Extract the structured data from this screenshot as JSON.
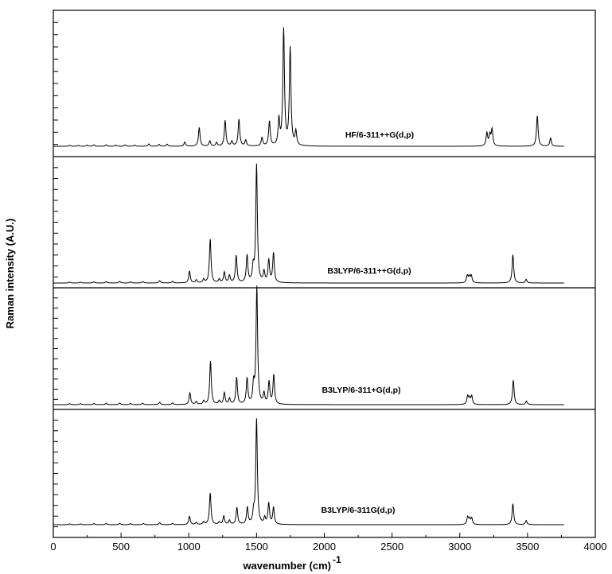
{
  "chart_data": {
    "type": "line",
    "xlabel": "wavenumber (cm)",
    "xlabel_superscript": "-1",
    "ylabel": "Raman intensity (A.U.)",
    "xlim": [
      0,
      4000
    ],
    "x_ticks": [
      0,
      500,
      1000,
      1500,
      2000,
      2500,
      3000,
      3500,
      4000
    ],
    "y_tick_labels": "none",
    "grid": false,
    "layout": "stacked-panels",
    "line_color": "#000000",
    "x_end": 3770,
    "series": [
      {
        "name": "HF/6-311++G(d,p)",
        "ymax": 1.0,
        "peaks": [
          {
            "x": 120,
            "y": 0.008
          },
          {
            "x": 185,
            "y": 0.008
          },
          {
            "x": 250,
            "y": 0.01
          },
          {
            "x": 300,
            "y": 0.012
          },
          {
            "x": 390,
            "y": 0.012
          },
          {
            "x": 460,
            "y": 0.01
          },
          {
            "x": 530,
            "y": 0.012
          },
          {
            "x": 600,
            "y": 0.01
          },
          {
            "x": 705,
            "y": 0.02
          },
          {
            "x": 780,
            "y": 0.016
          },
          {
            "x": 840,
            "y": 0.018
          },
          {
            "x": 970,
            "y": 0.035
          },
          {
            "x": 1077,
            "y": 0.16
          },
          {
            "x": 1155,
            "y": 0.045
          },
          {
            "x": 1205,
            "y": 0.03
          },
          {
            "x": 1268,
            "y": 0.22
          },
          {
            "x": 1318,
            "y": 0.04
          },
          {
            "x": 1370,
            "y": 0.23
          },
          {
            "x": 1420,
            "y": 0.05
          },
          {
            "x": 1540,
            "y": 0.07
          },
          {
            "x": 1595,
            "y": 0.21
          },
          {
            "x": 1665,
            "y": 0.22
          },
          {
            "x": 1700,
            "y": 0.99
          },
          {
            "x": 1748,
            "y": 0.83
          },
          {
            "x": 1790,
            "y": 0.12
          },
          {
            "x": 3200,
            "y": 0.11
          },
          {
            "x": 3222,
            "y": 0.09
          },
          {
            "x": 3238,
            "y": 0.14
          },
          {
            "x": 3572,
            "y": 0.26
          },
          {
            "x": 3670,
            "y": 0.07
          }
        ]
      },
      {
        "name": "B3LYP/6-311++G(d,p)",
        "ymax": 1.0,
        "peaks": [
          {
            "x": 120,
            "y": 0.008
          },
          {
            "x": 200,
            "y": 0.008
          },
          {
            "x": 300,
            "y": 0.01
          },
          {
            "x": 390,
            "y": 0.012
          },
          {
            "x": 490,
            "y": 0.014
          },
          {
            "x": 570,
            "y": 0.01
          },
          {
            "x": 660,
            "y": 0.012
          },
          {
            "x": 785,
            "y": 0.02
          },
          {
            "x": 880,
            "y": 0.014
          },
          {
            "x": 1005,
            "y": 0.1
          },
          {
            "x": 1055,
            "y": 0.025
          },
          {
            "x": 1110,
            "y": 0.03
          },
          {
            "x": 1158,
            "y": 0.37
          },
          {
            "x": 1225,
            "y": 0.03
          },
          {
            "x": 1262,
            "y": 0.09
          },
          {
            "x": 1300,
            "y": 0.06
          },
          {
            "x": 1350,
            "y": 0.23
          },
          {
            "x": 1430,
            "y": 0.23
          },
          {
            "x": 1475,
            "y": 0.12
          },
          {
            "x": 1500,
            "y": 1.0
          },
          {
            "x": 1555,
            "y": 0.09
          },
          {
            "x": 1590,
            "y": 0.19
          },
          {
            "x": 1625,
            "y": 0.25
          },
          {
            "x": 3055,
            "y": 0.06
          },
          {
            "x": 3070,
            "y": 0.05
          },
          {
            "x": 3085,
            "y": 0.06
          },
          {
            "x": 3392,
            "y": 0.24
          },
          {
            "x": 3490,
            "y": 0.03
          }
        ]
      },
      {
        "name": "B3LYP/6-311+G(d,p)",
        "ymax": 1.0,
        "peaks": [
          {
            "x": 120,
            "y": 0.008
          },
          {
            "x": 200,
            "y": 0.008
          },
          {
            "x": 300,
            "y": 0.01
          },
          {
            "x": 390,
            "y": 0.012
          },
          {
            "x": 490,
            "y": 0.014
          },
          {
            "x": 570,
            "y": 0.01
          },
          {
            "x": 660,
            "y": 0.012
          },
          {
            "x": 785,
            "y": 0.02
          },
          {
            "x": 880,
            "y": 0.014
          },
          {
            "x": 1008,
            "y": 0.1
          },
          {
            "x": 1055,
            "y": 0.025
          },
          {
            "x": 1110,
            "y": 0.03
          },
          {
            "x": 1160,
            "y": 0.37
          },
          {
            "x": 1225,
            "y": 0.03
          },
          {
            "x": 1262,
            "y": 0.1
          },
          {
            "x": 1300,
            "y": 0.05
          },
          {
            "x": 1353,
            "y": 0.23
          },
          {
            "x": 1430,
            "y": 0.22
          },
          {
            "x": 1478,
            "y": 0.16
          },
          {
            "x": 1502,
            "y": 1.0
          },
          {
            "x": 1555,
            "y": 0.09
          },
          {
            "x": 1592,
            "y": 0.19
          },
          {
            "x": 1627,
            "y": 0.25
          },
          {
            "x": 3058,
            "y": 0.07
          },
          {
            "x": 3072,
            "y": 0.05
          },
          {
            "x": 3088,
            "y": 0.07
          },
          {
            "x": 3395,
            "y": 0.21
          },
          {
            "x": 3492,
            "y": 0.03
          }
        ]
      },
      {
        "name": "B3LYP/6-311G(d,p)",
        "ymax": 1.0,
        "peaks": [
          {
            "x": 120,
            "y": 0.008
          },
          {
            "x": 200,
            "y": 0.008
          },
          {
            "x": 300,
            "y": 0.01
          },
          {
            "x": 390,
            "y": 0.012
          },
          {
            "x": 490,
            "y": 0.012
          },
          {
            "x": 570,
            "y": 0.01
          },
          {
            "x": 665,
            "y": 0.012
          },
          {
            "x": 785,
            "y": 0.02
          },
          {
            "x": 880,
            "y": 0.012
          },
          {
            "x": 1005,
            "y": 0.08
          },
          {
            "x": 1055,
            "y": 0.02
          },
          {
            "x": 1110,
            "y": 0.025
          },
          {
            "x": 1158,
            "y": 0.3
          },
          {
            "x": 1225,
            "y": 0.025
          },
          {
            "x": 1258,
            "y": 0.08
          },
          {
            "x": 1300,
            "y": 0.04
          },
          {
            "x": 1355,
            "y": 0.16
          },
          {
            "x": 1432,
            "y": 0.16
          },
          {
            "x": 1478,
            "y": 0.1
          },
          {
            "x": 1500,
            "y": 1.0
          },
          {
            "x": 1560,
            "y": 0.06
          },
          {
            "x": 1590,
            "y": 0.2
          },
          {
            "x": 1625,
            "y": 0.16
          },
          {
            "x": 3058,
            "y": 0.07
          },
          {
            "x": 3072,
            "y": 0.05
          },
          {
            "x": 3088,
            "y": 0.06
          },
          {
            "x": 3392,
            "y": 0.2
          },
          {
            "x": 3490,
            "y": 0.04
          }
        ]
      }
    ]
  }
}
